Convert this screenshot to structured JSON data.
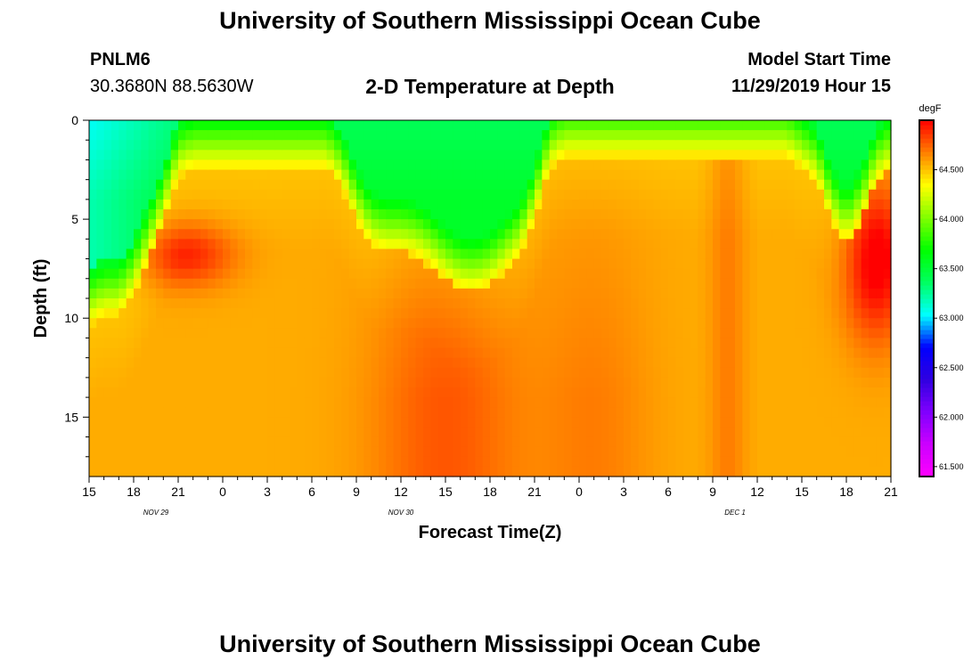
{
  "header": {
    "title": "University of Southern Mississippi Ocean Cube",
    "station": "PNLM6",
    "coords": "30.3680N 88.5630W",
    "subtitle": "2-D Temperature at Depth",
    "start_label": "Model Start Time",
    "start_value": "11/29/2019 Hour 15"
  },
  "footer": {
    "title": "University of Southern Mississippi Ocean Cube"
  },
  "chart_data": {
    "type": "heatmap",
    "title": "2-D Temperature at Depth",
    "xlabel": "Forecast Time(Z)",
    "ylabel": "Depth (ft)",
    "x_range_hours": [
      0,
      54
    ],
    "x_ticks": [
      "15",
      "18",
      "21",
      "0",
      "3",
      "6",
      "9",
      "12",
      "15",
      "18",
      "21",
      "0",
      "3",
      "6",
      "9",
      "12",
      "15",
      "18",
      "21"
    ],
    "date_labels": [
      {
        "label": "NOV  29",
        "hour": 4.5
      },
      {
        "label": "NOV  30",
        "hour": 21
      },
      {
        "label": "DEC  1",
        "hour": 43.5
      }
    ],
    "y_range_ft": [
      0,
      18
    ],
    "y_ticks": [
      0,
      5,
      10,
      15
    ],
    "colorbar": {
      "unit": "degF",
      "range": [
        61.4,
        65.0
      ],
      "ticks": [
        "61.500",
        "62.000",
        "62.500",
        "63.000",
        "63.500",
        "64.000",
        "64.500"
      ],
      "tick_values": [
        61.5,
        62.0,
        62.5,
        63.0,
        63.5,
        64.0,
        64.5
      ],
      "colors": [
        "#ff00ff",
        "#cc00ff",
        "#8000ff",
        "#3000e0",
        "#0000ff",
        "#00ffff",
        "#00ff60",
        "#00ff00",
        "#80ff00",
        "#ffff00",
        "#ff8000",
        "#ff0000"
      ]
    },
    "field": {
      "x_hours": [
        0,
        1,
        2,
        3,
        4,
        5,
        6,
        7,
        8,
        9,
        10,
        11,
        12,
        13,
        14,
        15,
        16,
        17,
        18,
        19,
        20,
        21,
        22,
        23,
        24,
        25,
        26,
        27,
        28,
        29,
        30,
        31,
        32,
        33,
        34,
        35,
        36,
        37,
        38,
        39,
        40,
        41,
        42,
        43,
        44,
        45,
        46,
        47,
        48,
        49,
        50,
        51,
        52,
        53,
        54
      ],
      "top_boundary_depth_ft": [
        8.5,
        8,
        8,
        7,
        5.2,
        3.3,
        1,
        0.6,
        0.6,
        0.6,
        0.6,
        0.6,
        0.6,
        0.6,
        0.6,
        0.6,
        0.6,
        1.5,
        3.3,
        4.5,
        4.8,
        4.8,
        5,
        5.5,
        6.2,
        6.7,
        6.8,
        6.5,
        5.8,
        5,
        3.2,
        0.6,
        0,
        0,
        0,
        0,
        0,
        0,
        0,
        0,
        0,
        0,
        0,
        0,
        0,
        0,
        0,
        0,
        0.6,
        1.3,
        3.3,
        4.4,
        3.3,
        1.3,
        0.6
      ],
      "warm_core": {
        "hour": 6.5,
        "depth_ft": 6.8,
        "value": 64.85
      },
      "hot_spot": {
        "hour": 53,
        "depth_ft": 7,
        "value": 65.0
      }
    }
  }
}
